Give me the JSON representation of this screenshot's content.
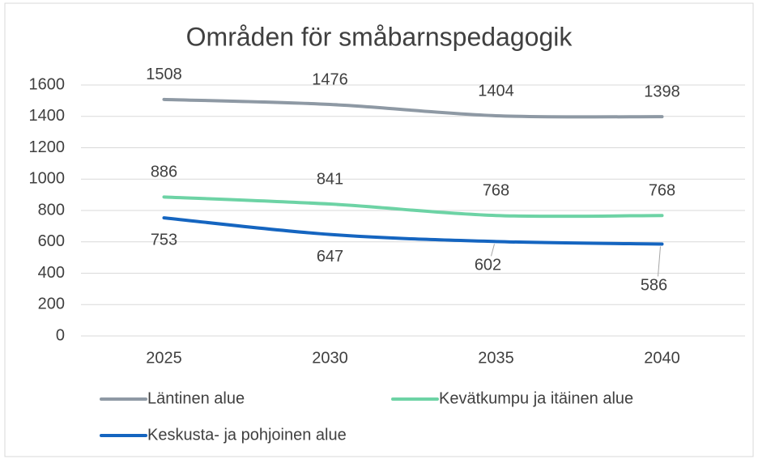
{
  "chart_data": {
    "type": "line",
    "title": "Områden för småbarnspedagogik",
    "categories": [
      "2025",
      "2030",
      "2035",
      "2040"
    ],
    "series": [
      {
        "name": "Läntinen alue",
        "color": "#8e99a4",
        "values": [
          1508,
          1476,
          1404,
          1398
        ]
      },
      {
        "name": "Kevätkumpu ja itäinen alue",
        "color": "#6dd3a5",
        "values": [
          886,
          841,
          768,
          768
        ]
      },
      {
        "name": "Keskusta- ja pohjoinen alue",
        "color": "#1565c0",
        "values": [
          753,
          647,
          602,
          586
        ]
      }
    ],
    "ylim": [
      0,
      1600
    ],
    "yticks": [
      0,
      200,
      400,
      600,
      800,
      1000,
      1200,
      1400,
      1600
    ],
    "grid": true
  }
}
